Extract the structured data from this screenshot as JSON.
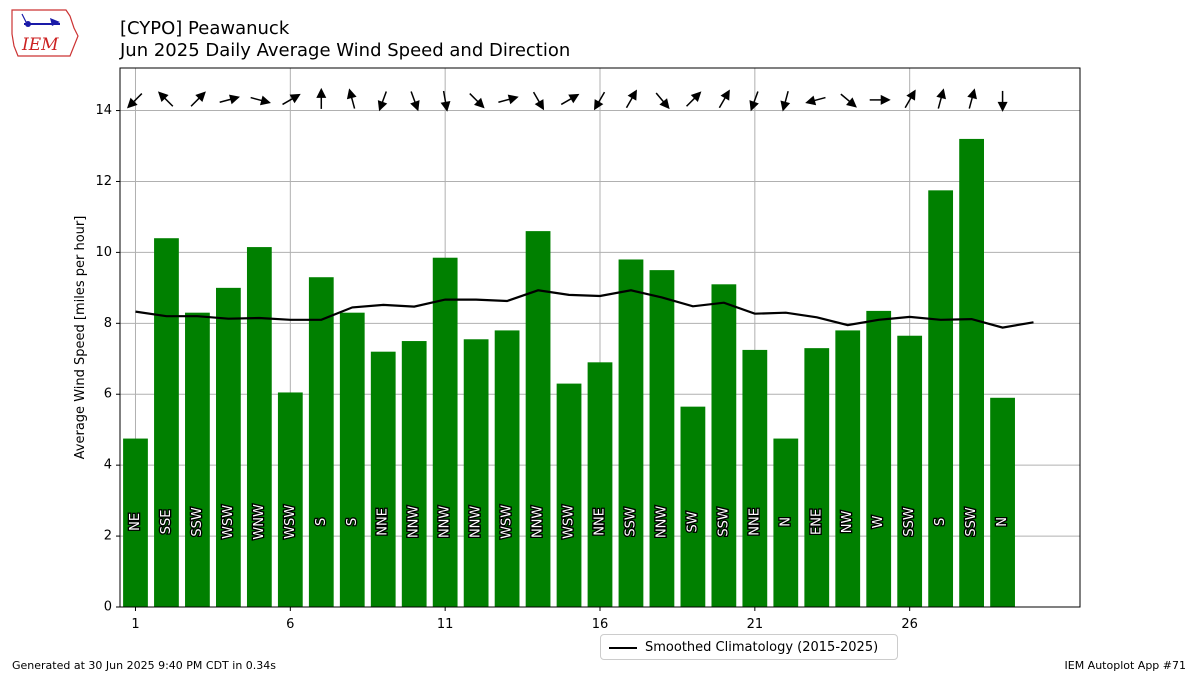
{
  "header": {
    "title_line1": "[CYPO] Peawanuck",
    "title_line2": "Jun 2025 Daily Average Wind Speed and Direction"
  },
  "logo": {
    "text": "IEM",
    "icon": "iem-iowa-logo"
  },
  "footer": {
    "left": "Generated at 30 Jun 2025 9:40 PM CDT in 0.34s",
    "right": "IEM Autoplot App #71"
  },
  "legend": {
    "label": "Smoothed Climatology (2015-2025)"
  },
  "colors": {
    "bar": "#008000",
    "line": "#000000",
    "grid": "#b0b0b0"
  },
  "chart_data": {
    "type": "bar",
    "ylabel": "Average Wind Speed [miles per hour]",
    "xlabel": "",
    "ylim": [
      0,
      15.2
    ],
    "xlim": [
      0.5,
      31.5
    ],
    "x_ticks": [
      1,
      6,
      11,
      16,
      21,
      26
    ],
    "y_ticks": [
      0,
      2,
      4,
      6,
      8,
      10,
      12,
      14
    ],
    "grid": true,
    "legend_placement": "bottom-center",
    "days": [
      1,
      2,
      3,
      4,
      5,
      6,
      7,
      8,
      9,
      10,
      11,
      12,
      13,
      14,
      15,
      16,
      17,
      18,
      19,
      20,
      21,
      22,
      23,
      24,
      25,
      26,
      27,
      28,
      29
    ],
    "speeds": [
      4.75,
      10.4,
      8.3,
      9.0,
      10.15,
      6.05,
      9.3,
      8.3,
      7.2,
      7.5,
      9.85,
      7.55,
      7.8,
      10.6,
      6.3,
      6.9,
      9.8,
      9.5,
      5.65,
      9.1,
      7.25,
      4.75,
      7.3,
      7.8,
      8.35,
      7.65,
      11.75,
      13.2,
      5.9
    ],
    "directions": [
      "NE",
      "SSE",
      "SSW",
      "WSW",
      "WNW",
      "WSW",
      "S",
      "S",
      "NNE",
      "NNW",
      "NNW",
      "NNW",
      "WSW",
      "NNW",
      "WSW",
      "NNE",
      "SSW",
      "NNW",
      "SW",
      "SSW",
      "NNE",
      "N",
      "ENE",
      "NW",
      "W",
      "SSW",
      "S",
      "SSW",
      "N"
    ],
    "arrow_angles": [
      225,
      315,
      45,
      75,
      105,
      60,
      0,
      345,
      200,
      160,
      170,
      135,
      75,
      150,
      60,
      210,
      30,
      140,
      45,
      30,
      200,
      195,
      255,
      130,
      90,
      30,
      15,
      15,
      180
    ],
    "climatology": {
      "name": "Smoothed Climatology (2015-2025)",
      "x": [
        1,
        2,
        3,
        4,
        5,
        6,
        7,
        8,
        9,
        10,
        11,
        12,
        13,
        14,
        15,
        16,
        17,
        18,
        19,
        20,
        21,
        22,
        23,
        24,
        25,
        26,
        27,
        28,
        29,
        30
      ],
      "values": [
        8.33,
        8.2,
        8.2,
        8.13,
        8.15,
        8.1,
        8.1,
        8.45,
        8.52,
        8.47,
        8.67,
        8.67,
        8.63,
        8.93,
        8.8,
        8.77,
        8.93,
        8.73,
        8.48,
        8.58,
        8.27,
        8.3,
        8.17,
        7.95,
        8.1,
        8.18,
        8.1,
        8.12,
        7.88,
        8.03
      ]
    }
  }
}
